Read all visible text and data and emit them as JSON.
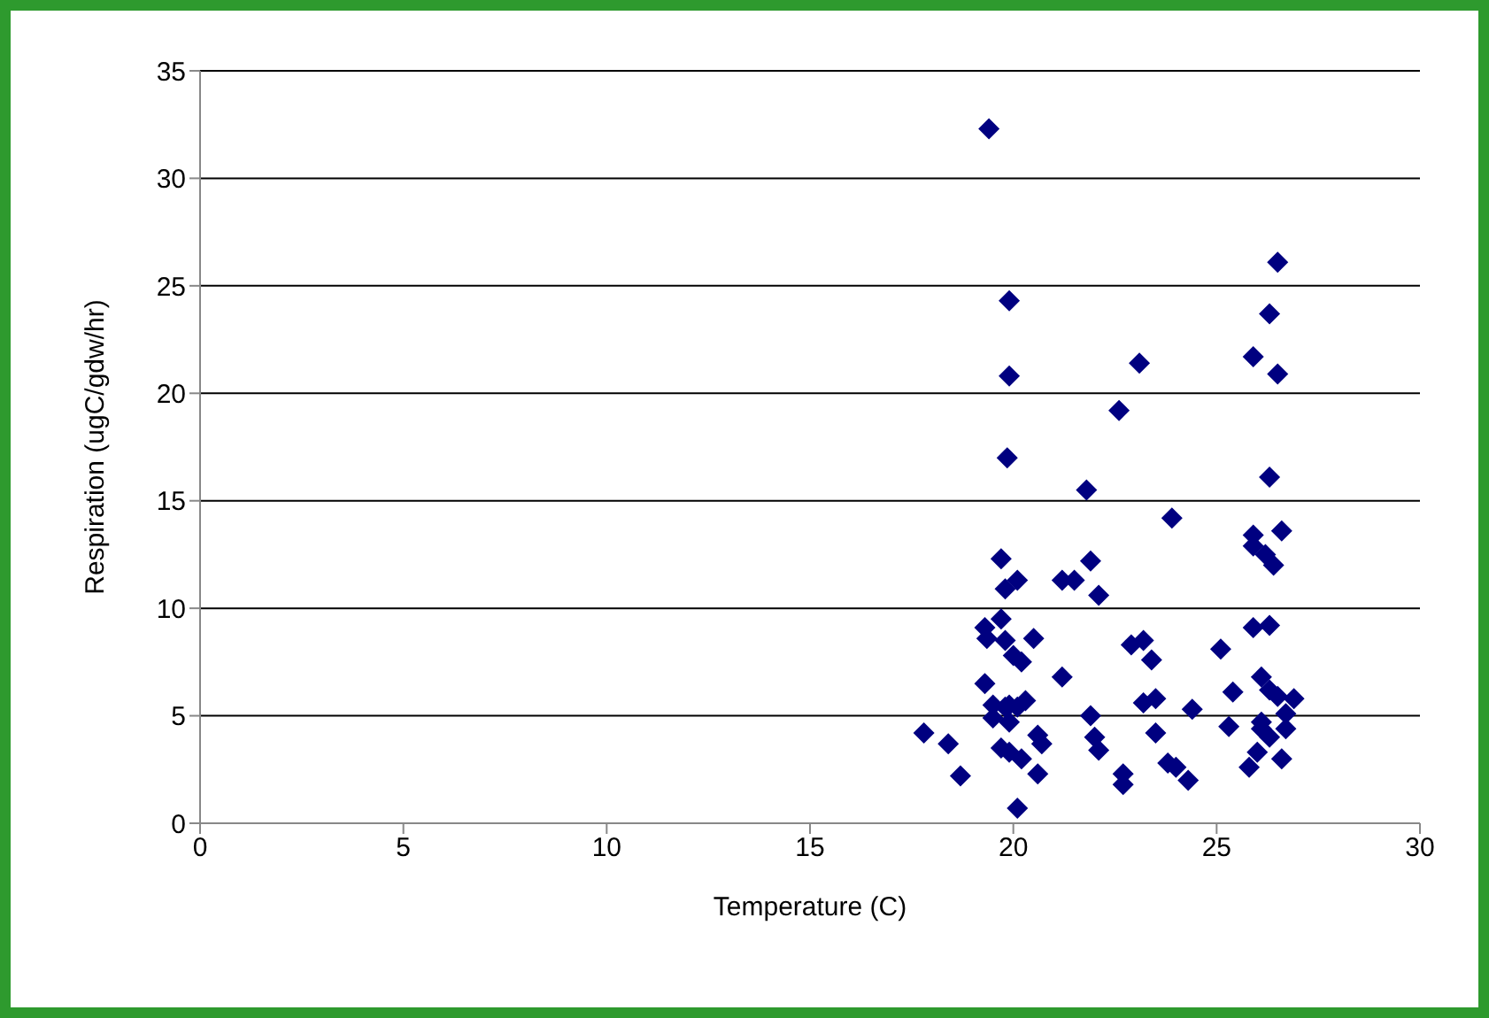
{
  "chart_data": {
    "type": "scatter",
    "xlabel": "Temperature (C)",
    "ylabel": "Respiration (ugC/gdw/hr)",
    "xlim": [
      0,
      30
    ],
    "xticks": [
      0,
      5,
      10,
      15,
      20,
      25,
      30
    ],
    "ylim": [
      0,
      35
    ],
    "yticks": [
      0,
      5,
      10,
      15,
      20,
      25,
      30,
      35
    ],
    "grid": "y",
    "marker": "diamond",
    "series": [
      {
        "color": "#000080",
        "x": [
          19.4,
          19.9,
          19.9,
          19.85,
          19.7,
          20.1,
          19.8,
          19.7,
          19.3,
          19.35,
          19.8,
          20.0,
          20.2,
          20.5,
          19.3,
          19.5,
          19.5,
          19.8,
          19.9,
          20.1,
          20.3,
          19.9,
          19.7,
          19.9,
          20.2,
          20.6,
          20.7,
          20.6,
          20.1,
          17.8,
          18.4,
          18.7,
          21.2,
          21.2,
          21.5,
          21.9,
          22.1,
          22.6,
          21.8,
          21.9,
          22.0,
          22.1,
          22.7,
          22.7,
          22.9,
          23.2,
          23.4,
          23.2,
          23.5,
          23.5,
          23.8,
          24.0,
          24.3,
          24.4,
          23.9,
          23.1,
          25.1,
          25.4,
          25.3,
          25.9,
          26.3,
          25.9,
          25.9,
          26.2,
          26.4,
          26.6,
          26.3,
          26.5,
          26.3,
          25.9,
          26.5,
          26.1,
          26.3,
          26.5,
          26.9,
          26.7,
          26.7,
          26.1,
          26.3,
          26.0,
          25.8,
          26.6,
          26.1
        ],
        "values": [
          32.3,
          24.3,
          20.8,
          17.0,
          12.3,
          11.3,
          10.9,
          9.5,
          9.1,
          8.6,
          8.5,
          7.8,
          7.5,
          8.6,
          6.5,
          5.5,
          4.9,
          5.4,
          5.5,
          5.4,
          5.7,
          4.7,
          3.5,
          3.3,
          3.0,
          4.1,
          3.7,
          2.3,
          0.7,
          4.2,
          3.7,
          2.2,
          6.8,
          11.3,
          11.3,
          12.2,
          10.6,
          19.2,
          15.5,
          5.0,
          4.0,
          3.4,
          2.3,
          1.8,
          8.3,
          8.5,
          7.6,
          5.6,
          5.8,
          4.2,
          2.8,
          2.6,
          2.0,
          5.3,
          14.2,
          21.4,
          8.1,
          6.1,
          4.5,
          9.1,
          9.2,
          13.4,
          12.9,
          12.5,
          12.0,
          13.6,
          16.1,
          26.1,
          23.7,
          21.7,
          20.9,
          6.8,
          6.2,
          5.9,
          5.8,
          5.1,
          4.4,
          4.4,
          4.0,
          3.3,
          2.6,
          3.0,
          4.7
        ]
      }
    ]
  }
}
